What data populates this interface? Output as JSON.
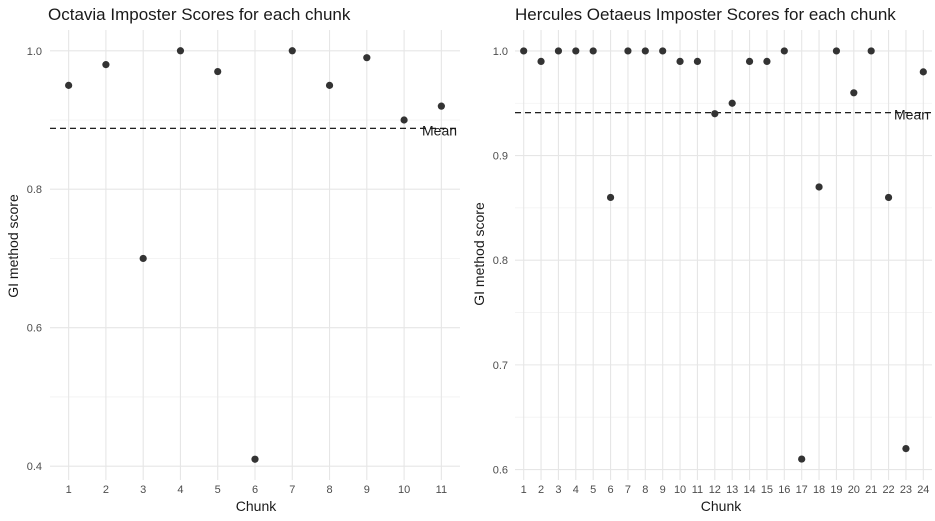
{
  "chart_data": [
    {
      "type": "scatter",
      "title": "Octavia Imposter Scores for each chunk",
      "xlabel": "Chunk",
      "ylabel": "GI method score",
      "x": [
        1,
        2,
        3,
        4,
        5,
        6,
        7,
        8,
        9,
        10,
        11
      ],
      "x_tick_labels": [
        "1",
        "2",
        "3",
        "4",
        "5",
        "6",
        "7",
        "8",
        "9",
        "10",
        "11"
      ],
      "y": [
        0.95,
        0.98,
        0.7,
        1.0,
        0.97,
        0.41,
        1.0,
        0.95,
        0.99,
        0.9,
        0.92
      ],
      "y_ticks": [
        0.4,
        0.6,
        0.8,
        1.0
      ],
      "y_tick_labels": [
        "0.4",
        "0.6",
        "0.8",
        "1.0"
      ],
      "ylim": [
        0.38,
        1.03
      ],
      "xlim": [
        0.5,
        11.5
      ],
      "mean": 0.888,
      "mean_label": "Mean",
      "grid": true
    },
    {
      "type": "scatter",
      "title": "Hercules Oetaeus Imposter Scores for each chunk",
      "xlabel": "Chunk",
      "ylabel": "GI method score",
      "x": [
        1,
        2,
        3,
        4,
        5,
        6,
        7,
        8,
        9,
        10,
        11,
        12,
        13,
        14,
        15,
        16,
        17,
        18,
        19,
        20,
        21,
        22,
        23,
        24
      ],
      "x_tick_labels": [
        "1",
        "2",
        "3",
        "4",
        "5",
        "6",
        "7",
        "8",
        "9",
        "10",
        "11",
        "12",
        "13",
        "14",
        "15",
        "16",
        "17",
        "18",
        "19",
        "20",
        "21",
        "22",
        "23",
        "24"
      ],
      "y": [
        1.0,
        0.99,
        1.0,
        1.0,
        1.0,
        0.86,
        1.0,
        1.0,
        1.0,
        0.99,
        0.99,
        0.94,
        0.95,
        0.99,
        0.99,
        1.0,
        0.61,
        0.87,
        1.0,
        0.96,
        1.0,
        0.86,
        0.62,
        0.98
      ],
      "y_ticks": [
        0.6,
        0.7,
        0.8,
        0.9,
        1.0
      ],
      "y_tick_labels": [
        "0.6",
        "0.7",
        "0.8",
        "0.9",
        "1.0"
      ],
      "ylim": [
        0.59,
        1.02
      ],
      "xlim": [
        0.5,
        24.5
      ],
      "mean": 0.941,
      "mean_label": "Mean",
      "grid": true
    }
  ]
}
